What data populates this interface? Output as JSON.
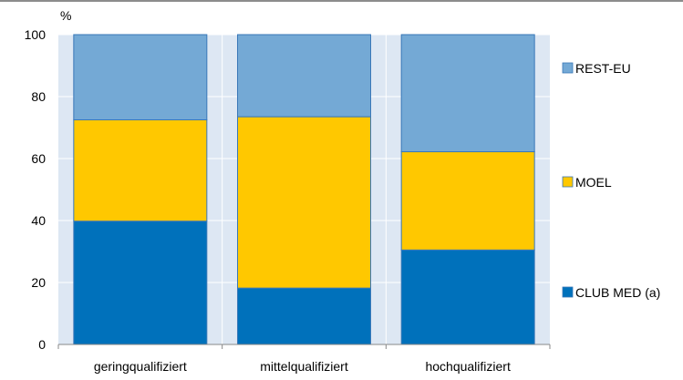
{
  "chart_data": {
    "type": "bar",
    "stacked": true,
    "unit_label": "%",
    "categories": [
      "geringqualifiziert",
      "mittelqualifiziert",
      "hochqualifiziert"
    ],
    "series": [
      {
        "name": "CLUB MED (a)",
        "values": [
          39.8,
          18.2,
          30.5
        ],
        "color": "#0071BB"
      },
      {
        "name": "MOEL",
        "values": [
          32.7,
          55.3,
          31.7
        ],
        "color": "#FFC800"
      },
      {
        "name": "REST-EU",
        "values": [
          27.5,
          26.5,
          37.8
        ],
        "color": "#74A9D5"
      }
    ],
    "ylim": [
      0,
      100
    ],
    "yticks": [
      0,
      20,
      40,
      60,
      80,
      100
    ],
    "grid": true,
    "legend": "right",
    "colors": {
      "plot_background": "#DDE7F3",
      "grid": "#FFFFFF",
      "bar_border": "#3A78B8",
      "axis": "#888888"
    }
  }
}
